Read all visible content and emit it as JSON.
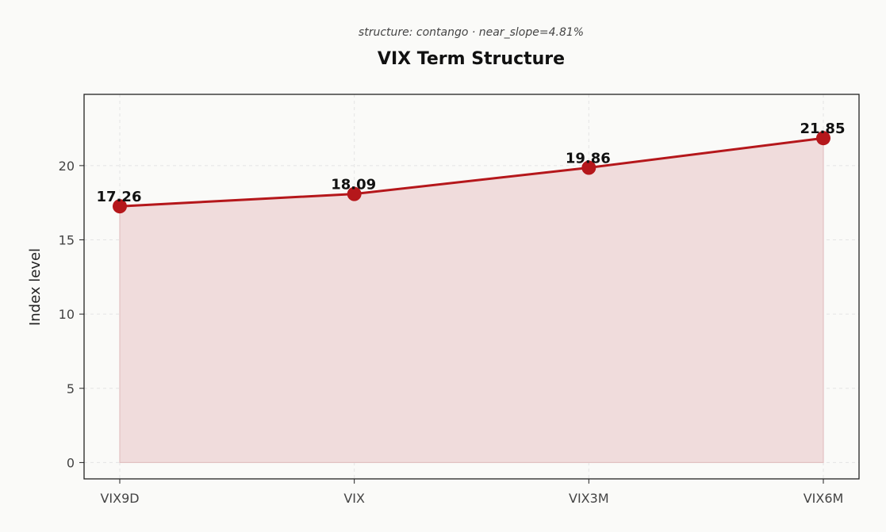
{
  "chart_data": {
    "type": "area",
    "subtitle": "structure: contango · near_slope=4.81%",
    "title": "VIX Term Structure",
    "xlabel": "",
    "ylabel": "Index level",
    "categories": [
      "VIX9D",
      "VIX",
      "VIX3M",
      "VIX6M"
    ],
    "values": [
      17.26,
      18.09,
      19.86,
      21.85
    ],
    "data_labels": [
      "17.26",
      "18.09",
      "19.86",
      "21.85"
    ],
    "ylim": [
      -1.1,
      24.8
    ],
    "yticks": [
      0,
      5,
      10,
      15,
      20
    ],
    "grid": true,
    "colors": {
      "line": "#b5171b",
      "fill": "#f0dcdc",
      "marker": "#b5171b"
    }
  }
}
